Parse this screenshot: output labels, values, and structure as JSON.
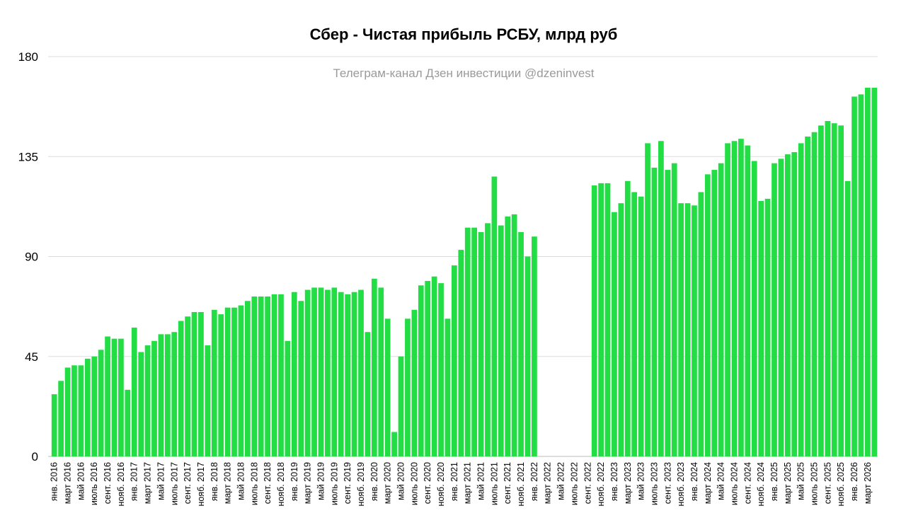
{
  "chart_data": {
    "type": "bar",
    "title": "Сбер - Чистая прибыль РСБУ, млрд руб",
    "subtitle": "Телеграм-канал Дзен инвестиции @dzeninvest",
    "ylim": [
      0,
      180
    ],
    "yticks": [
      "0",
      "45",
      "90",
      "135",
      "180"
    ],
    "grid": true,
    "bar_color": "#22dd44",
    "categories": [
      "янв. 2016",
      "",
      "март 2016",
      "",
      "май 2016",
      "",
      "июль 2016",
      "",
      "сент. 2016",
      "",
      "нояб. 2016",
      "",
      "янв. 2017",
      "",
      "март 2017",
      "",
      "май 2017",
      "",
      "июль 2017",
      "",
      "сент. 2017",
      "",
      "нояб. 2017",
      "",
      "янв. 2018",
      "",
      "март 2018",
      "",
      "май 2018",
      "",
      "июль 2018",
      "",
      "сент. 2018",
      "",
      "нояб. 2018",
      "",
      "янв. 2019",
      "",
      "март 2019",
      "",
      "май 2019",
      "",
      "июль 2019",
      "",
      "сент. 2019",
      "",
      "нояб. 2019",
      "",
      "янв. 2020",
      "",
      "март 2020",
      "",
      "май 2020",
      "",
      "июль 2020",
      "",
      "сент. 2020",
      "",
      "нояб. 2020",
      "",
      "янв. 2021",
      "",
      "март 2021",
      "",
      "май 2021",
      "",
      "июль 2021",
      "",
      "сент. 2021",
      "",
      "нояб. 2021",
      "",
      "янв. 2022",
      "",
      "март 2022",
      "",
      "май 2022",
      "",
      "июль 2022",
      "",
      "сент. 2022",
      "",
      "нояб. 2022",
      "",
      "янв. 2023",
      "",
      "март 2023",
      "",
      "май 2023",
      "",
      "июль 2023",
      "",
      "сент. 2023",
      "",
      "нояб. 2023",
      "",
      "янв. 2024",
      "",
      "март 2024",
      "",
      "май 2024",
      "",
      "июль 2024",
      "",
      "сент. 2024",
      "",
      "нояб. 2024",
      "",
      "янв. 2025",
      "",
      "март 2025",
      "",
      "май 2025",
      "",
      "июль 2025",
      "",
      "сент. 2025",
      "",
      "нояб. 2025",
      "",
      "янв. 2026",
      "",
      "март 2026",
      ""
    ],
    "values": [
      28,
      34,
      40,
      41,
      41,
      44,
      45,
      48,
      54,
      53,
      53,
      30,
      58,
      47,
      50,
      52,
      55,
      55,
      56,
      61,
      63,
      65,
      65,
      50,
      66,
      64,
      67,
      67,
      68,
      70,
      72,
      72,
      72,
      73,
      73,
      52,
      74,
      70,
      75,
      76,
      76,
      75,
      76,
      74,
      73,
      74,
      75,
      56,
      80,
      76,
      62,
      11,
      45,
      62,
      66,
      77,
      79,
      81,
      78,
      62,
      86,
      93,
      103,
      103,
      101,
      105,
      126,
      104,
      108,
      109,
      101,
      90,
      99,
      null,
      null,
      null,
      null,
      null,
      null,
      null,
      null,
      122,
      123,
      123,
      110,
      114,
      124,
      119,
      117,
      141,
      130,
      142,
      129,
      132,
      114,
      114,
      113,
      119,
      127,
      129,
      132,
      141,
      142,
      143,
      140,
      133,
      115,
      116,
      132,
      134,
      136,
      137,
      141,
      144,
      146,
      149,
      151,
      150,
      149,
      124,
      162,
      163,
      166,
      166
    ]
  }
}
